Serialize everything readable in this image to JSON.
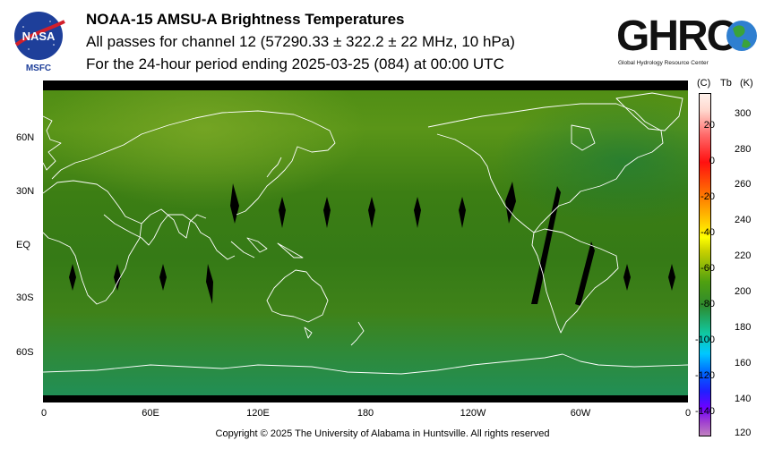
{
  "header": {
    "title": "NOAA-15 AMSU-A Brightness Temperatures",
    "subtitle": "All passes for channel 12 (57290.33 ± 322.2 ± 22 MHz, 10 hPa)",
    "period": "For the 24-hour period ending 2025-03-25 (084) at 00:00 UTC"
  },
  "logos": {
    "nasa_text": "NASA",
    "msfc": "MSFC",
    "ghrc_text": "GHRC",
    "ghrc_tagline": "Global Hydrology Resource Center"
  },
  "map": {
    "lat_labels": [
      "60N",
      "30N",
      "EQ",
      "30S",
      "60S"
    ],
    "lon_labels": [
      "0",
      "60E",
      "120E",
      "180",
      "120W",
      "60W",
      "0"
    ]
  },
  "colorbar": {
    "header_c": "(C)",
    "header_tb": "Tb",
    "header_k": "(K)",
    "celsius_ticks": [
      "20",
      "0",
      "-20",
      "-40",
      "-60",
      "-80",
      "-100",
      "-120",
      "-140"
    ],
    "kelvin_ticks": [
      "300",
      "280",
      "260",
      "240",
      "220",
      "200",
      "180",
      "160",
      "140",
      "120"
    ]
  },
  "footer": "Copyright © 2025 The University of Alabama in Huntsville.  All rights reserved"
}
